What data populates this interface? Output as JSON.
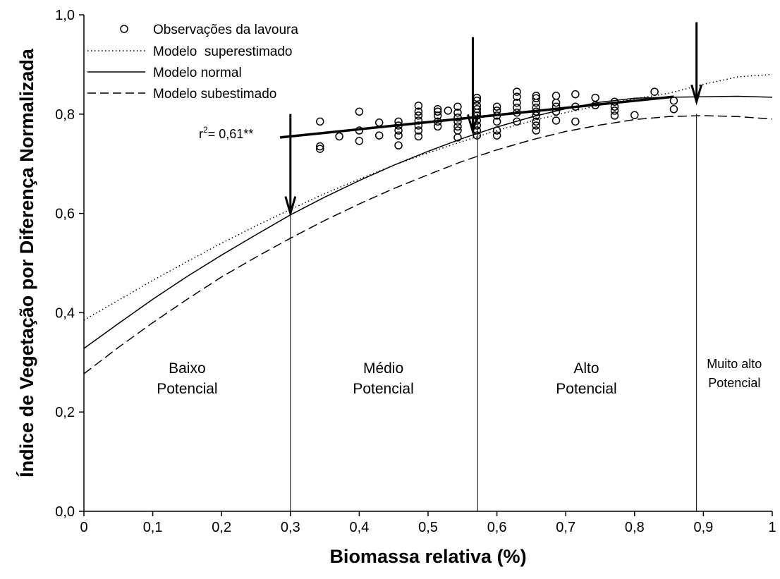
{
  "chart_data": {
    "type": "scatter",
    "xlabel": "Biomassa relativa (%)",
    "ylabel": "Índice de Vegetação por Diferença Normalizada",
    "xlim": [
      0,
      1
    ],
    "ylim": [
      0,
      1
    ],
    "xticks": [
      "0",
      "0,1",
      "0,2",
      "0,3",
      "0,4",
      "0,5",
      "0,6",
      "0,7",
      "0,8",
      "0,9",
      "1"
    ],
    "yticks": [
      "0,0",
      "0,2",
      "0,4",
      "0,6",
      "0,8",
      "1,0"
    ],
    "grid": false,
    "legend_position": "top-left",
    "legend": [
      {
        "label": "Observações da lavoura",
        "style": "circle"
      },
      {
        "label": "Modelo  superestimado",
        "style": "dotted"
      },
      {
        "label": "Modelo normal",
        "style": "solid"
      },
      {
        "label": "Modelo subestimado",
        "style": "dashed"
      }
    ],
    "observations": {
      "name": "Observações da lavoura",
      "points": [
        [
          0.343,
          0.785
        ],
        [
          0.343,
          0.735
        ],
        [
          0.343,
          0.73
        ],
        [
          0.371,
          0.755
        ],
        [
          0.4,
          0.805
        ],
        [
          0.4,
          0.767
        ],
        [
          0.4,
          0.746
        ],
        [
          0.429,
          0.783
        ],
        [
          0.429,
          0.757
        ],
        [
          0.457,
          0.785
        ],
        [
          0.457,
          0.777
        ],
        [
          0.457,
          0.767
        ],
        [
          0.457,
          0.757
        ],
        [
          0.457,
          0.737
        ],
        [
          0.486,
          0.817
        ],
        [
          0.486,
          0.805
        ],
        [
          0.486,
          0.797
        ],
        [
          0.486,
          0.787
        ],
        [
          0.486,
          0.777
        ],
        [
          0.486,
          0.767
        ],
        [
          0.486,
          0.755
        ],
        [
          0.514,
          0.81
        ],
        [
          0.514,
          0.805
        ],
        [
          0.514,
          0.797
        ],
        [
          0.514,
          0.785
        ],
        [
          0.514,
          0.775
        ],
        [
          0.529,
          0.807
        ],
        [
          0.543,
          0.815
        ],
        [
          0.543,
          0.803
        ],
        [
          0.543,
          0.793
        ],
        [
          0.543,
          0.785
        ],
        [
          0.543,
          0.775
        ],
        [
          0.543,
          0.767
        ],
        [
          0.543,
          0.753
        ],
        [
          0.571,
          0.833
        ],
        [
          0.571,
          0.827
        ],
        [
          0.571,
          0.817
        ],
        [
          0.571,
          0.81
        ],
        [
          0.571,
          0.803
        ],
        [
          0.571,
          0.797
        ],
        [
          0.571,
          0.787
        ],
        [
          0.571,
          0.777
        ],
        [
          0.571,
          0.767
        ],
        [
          0.571,
          0.757
        ],
        [
          0.6,
          0.815
        ],
        [
          0.6,
          0.807
        ],
        [
          0.6,
          0.797
        ],
        [
          0.6,
          0.785
        ],
        [
          0.6,
          0.767
        ],
        [
          0.6,
          0.757
        ],
        [
          0.629,
          0.845
        ],
        [
          0.629,
          0.835
        ],
        [
          0.629,
          0.823
        ],
        [
          0.629,
          0.813
        ],
        [
          0.629,
          0.803
        ],
        [
          0.629,
          0.785
        ],
        [
          0.657,
          0.837
        ],
        [
          0.657,
          0.832
        ],
        [
          0.657,
          0.823
        ],
        [
          0.657,
          0.813
        ],
        [
          0.657,
          0.805
        ],
        [
          0.657,
          0.797
        ],
        [
          0.657,
          0.785
        ],
        [
          0.657,
          0.777
        ],
        [
          0.657,
          0.767
        ],
        [
          0.686,
          0.837
        ],
        [
          0.686,
          0.823
        ],
        [
          0.686,
          0.815
        ],
        [
          0.686,
          0.805
        ],
        [
          0.686,
          0.787
        ],
        [
          0.714,
          0.84
        ],
        [
          0.714,
          0.815
        ],
        [
          0.714,
          0.785
        ],
        [
          0.743,
          0.833
        ],
        [
          0.743,
          0.818
        ],
        [
          0.771,
          0.825
        ],
        [
          0.771,
          0.815
        ],
        [
          0.771,
          0.807
        ],
        [
          0.771,
          0.797
        ],
        [
          0.8,
          0.798
        ],
        [
          0.829,
          0.845
        ],
        [
          0.857,
          0.827
        ],
        [
          0.857,
          0.81
        ]
      ]
    },
    "regression": {
      "label": "r2= 0,61**",
      "x": [
        0.285,
        0.857
      ],
      "y": [
        0.753,
        0.835
      ]
    },
    "models": [
      {
        "name": "Modelo  superestimado",
        "style": "dotted",
        "x": [
          0,
          0.05,
          0.1,
          0.15,
          0.2,
          0.25,
          0.3,
          0.35,
          0.4,
          0.45,
          0.5,
          0.55,
          0.6,
          0.65,
          0.7,
          0.75,
          0.8,
          0.85,
          0.9,
          0.95,
          1.0
        ],
        "y": [
          0.385,
          0.425,
          0.465,
          0.503,
          0.54,
          0.575,
          0.608,
          0.64,
          0.669,
          0.697,
          0.722,
          0.745,
          0.767,
          0.786,
          0.803,
          0.818,
          0.831,
          0.842,
          0.86,
          0.875,
          0.88
        ]
      },
      {
        "name": "Modelo normal",
        "style": "solid",
        "x": [
          0,
          0.05,
          0.1,
          0.15,
          0.2,
          0.25,
          0.3,
          0.35,
          0.4,
          0.45,
          0.5,
          0.55,
          0.6,
          0.65,
          0.7,
          0.75,
          0.8,
          0.85,
          0.9,
          0.95,
          1.0
        ],
        "y": [
          0.328,
          0.378,
          0.427,
          0.473,
          0.516,
          0.557,
          0.597,
          0.633,
          0.666,
          0.697,
          0.725,
          0.751,
          0.774,
          0.794,
          0.811,
          0.824,
          0.832,
          0.834,
          0.835,
          0.836,
          0.834
        ]
      },
      {
        "name": "Modelo subestimado",
        "style": "dashed",
        "x": [
          0,
          0.05,
          0.1,
          0.15,
          0.2,
          0.25,
          0.3,
          0.35,
          0.4,
          0.45,
          0.5,
          0.55,
          0.6,
          0.65,
          0.7,
          0.75,
          0.8,
          0.85,
          0.9,
          0.95,
          1.0
        ],
        "y": [
          0.277,
          0.33,
          0.38,
          0.427,
          0.472,
          0.512,
          0.55,
          0.586,
          0.619,
          0.65,
          0.678,
          0.705,
          0.728,
          0.748,
          0.765,
          0.778,
          0.789,
          0.795,
          0.797,
          0.795,
          0.79
        ]
      }
    ],
    "thresholds": [
      0.3,
      0.572,
      0.89
    ],
    "arrows": [
      {
        "x": 0.3,
        "from": 0.8,
        "to": 0.6
      },
      {
        "x": 0.565,
        "from": 0.955,
        "to": 0.765
      },
      {
        "x": 0.89,
        "from": 0.985,
        "to": 0.825
      }
    ],
    "zones": [
      {
        "line1": "Baixo",
        "line2": "Potencial",
        "x": 0.15,
        "small": false
      },
      {
        "line1": "Médio",
        "line2": "Potencial",
        "x": 0.435,
        "small": false
      },
      {
        "line1": "Alto",
        "line2": "Potencial",
        "x": 0.73,
        "small": false
      },
      {
        "line1": "Muito alto",
        "line2": "Potencial",
        "x": 0.945,
        "small": true
      }
    ]
  }
}
